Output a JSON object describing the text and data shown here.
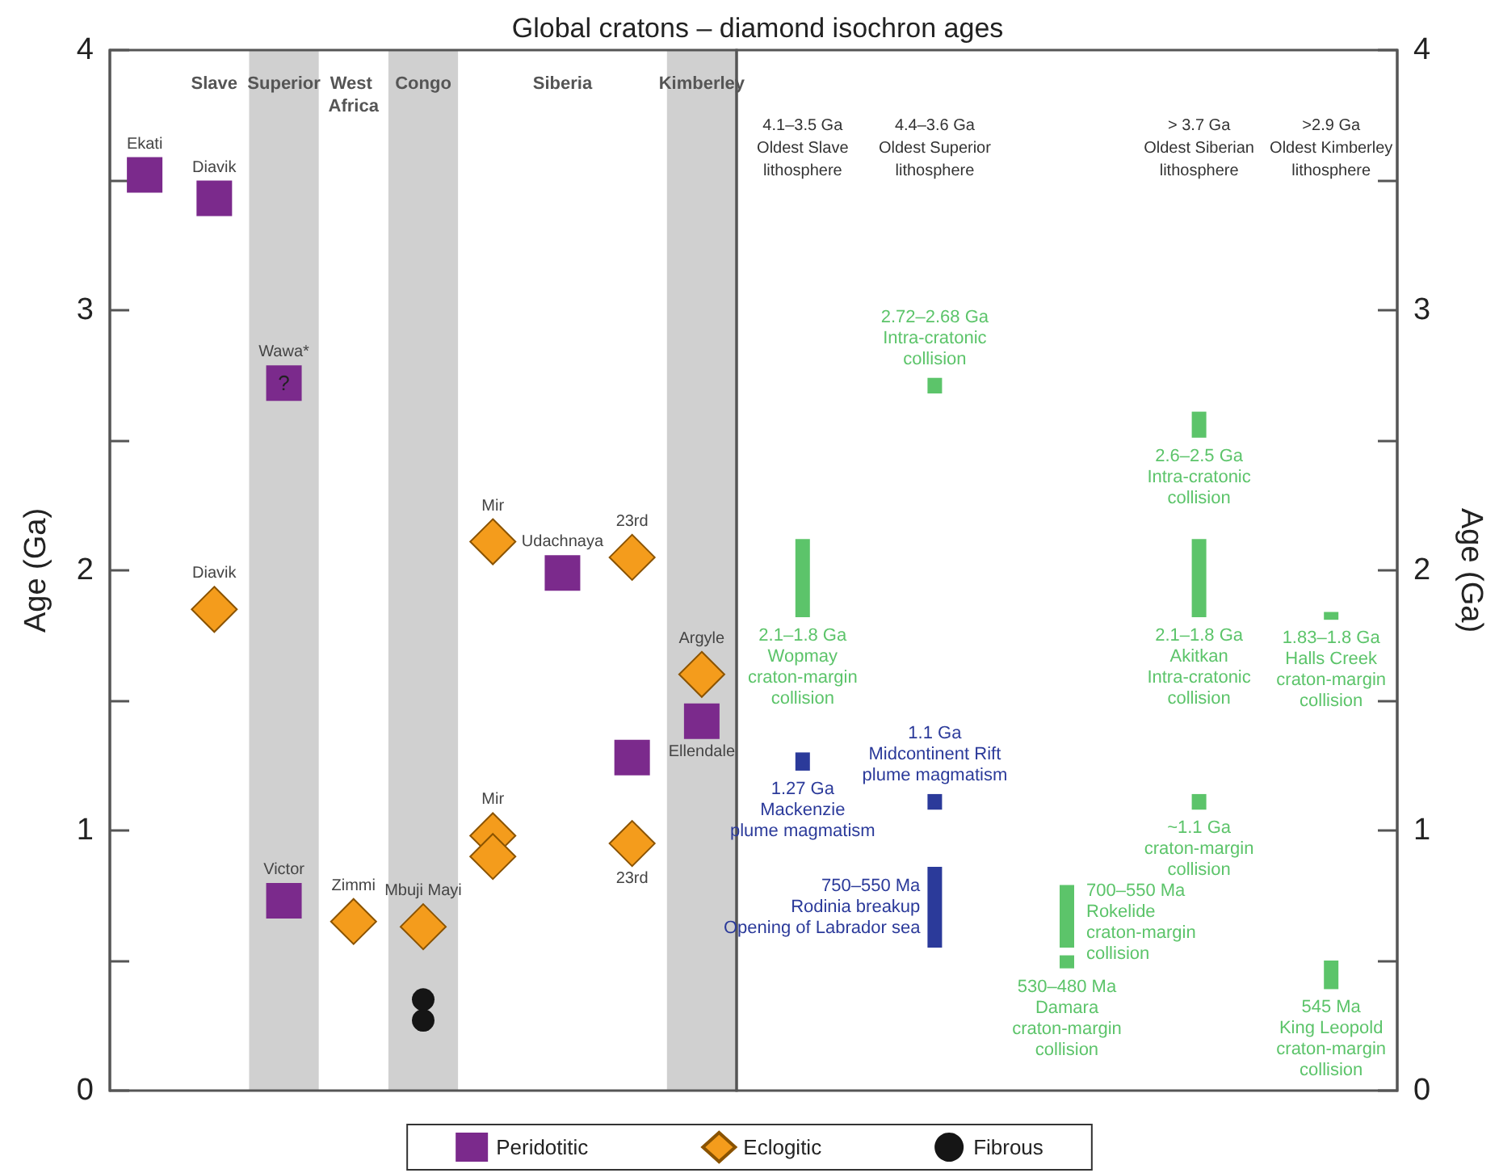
{
  "chart_data": [
    {
      "type": "scatter",
      "title": "Global cratons – diamond isochron ages",
      "ylabel": "Age (Ga)",
      "legend": "bottom",
      "categories": [
        null,
        "Slave",
        "Superior",
        "West Africa",
        "Congo",
        null,
        "Siberia",
        null,
        "Kimberley"
      ],
      "ylim": [
        0,
        4
      ],
      "yticks": [
        0,
        {
          "value": 0.5,
          "label": null
        },
        1,
        {
          "value": 1.5,
          "label": null
        },
        2,
        {
          "value": 2.5,
          "label": null
        },
        3,
        {
          "value": 3.5,
          "label": null
        },
        4
      ],
      "bands": [
        {
          "axis": "x",
          "from": "Superior",
          "to": "Superior",
          "color": "#d0d0d0"
        },
        {
          "axis": "x",
          "from": "Congo",
          "to": "Congo",
          "color": "#d0d0d0"
        },
        {
          "axis": "x",
          "from": "Kimberley",
          "to": "Kimberley",
          "color": "#d0d0d0"
        }
      ],
      "annotations": [
        {
          "text": "Ekati",
          "y": 3.52
        },
        {
          "text": "Diavik",
          "x": "Slave",
          "y": 3.43
        },
        {
          "text": "Wawa*",
          "x": "Superior",
          "y": 2.72
        },
        {
          "text": "?",
          "x": "Superior",
          "y": 2.72
        },
        {
          "text": "Diavik",
          "x": "Slave",
          "y": 1.85
        },
        {
          "text": "Victor",
          "x": "Superior",
          "y": 0.73
        },
        {
          "text": "Zimmi",
          "x": "West Africa",
          "y": 0.65
        },
        {
          "text": "Mbuji Mayi",
          "x": "Congo",
          "y": 0.63
        },
        {
          "text": "Mir",
          "y": 2.11
        },
        {
          "text": "Mir",
          "y": 0.98
        },
        {
          "text": "Udachnaya",
          "x": "Siberia",
          "y": 1.99
        },
        {
          "text": "23rd",
          "y": 2.05
        },
        {
          "text": "23rd",
          "y": 0.95
        },
        {
          "text": "Argyle",
          "x": "Kimberley",
          "y": 1.6
        },
        {
          "text": "Ellendale",
          "x": "Kimberley",
          "y": 1.42
        }
      ],
      "series": [
        {
          "name": "Peridotitic",
          "color": "#7b2a8c",
          "marker": "square",
          "values": [
            3.52,
            3.43,
            2.72,
            null,
            null,
            null,
            1.99,
            1.28,
            1.42
          ]
        },
        {
          "color": "#7b2a8c",
          "marker": "square",
          "values": [
            null,
            null,
            0.73,
            null,
            null,
            null,
            null,
            null,
            null
          ]
        },
        {
          "name": "Eclogitic",
          "color": "#f49c1c",
          "marker": "diamond",
          "values": [
            null,
            1.85,
            null,
            0.65,
            0.63,
            2.11,
            null,
            2.05,
            1.6
          ]
        },
        {
          "color": "#f49c1c",
          "marker": "diamond",
          "values": [
            null,
            null,
            null,
            null,
            null,
            0.98,
            null,
            0.95,
            null
          ]
        },
        {
          "color": "#f49c1c",
          "marker": "diamond",
          "values": [
            null,
            null,
            null,
            null,
            null,
            0.9,
            null,
            null,
            null
          ]
        },
        {
          "name": "Fibrous",
          "color": "#151515",
          "marker": "circle",
          "values": [
            null,
            null,
            null,
            null,
            0.35,
            null,
            null,
            null,
            null
          ]
        },
        {
          "color": "#151515",
          "marker": "circle",
          "values": [
            null,
            null,
            null,
            null,
            0.27,
            null,
            null,
            null,
            null
          ]
        }
      ]
    },
    {
      "type": "bar",
      "ylabel": "Age (Ga)",
      "categories": [
        "4.1–3.5 Ga\nOldest Slave\nlithosphere",
        "4.4–3.6 Ga\nOldest Superior\nlithosphere",
        null,
        "> 3.7 Ga\nOldest Siberian\nlithosphere",
        ">2.9 Ga\nOldest Kimberley\nlithosphere"
      ],
      "ylim": [
        0,
        4
      ],
      "yticks": [
        0,
        {
          "value": 0.5,
          "label": null
        },
        1,
        {
          "value": 1.5,
          "label": null
        },
        2,
        {
          "value": 2.5,
          "label": null
        },
        3,
        {
          "value": 3.5,
          "label": null
        },
        4
      ],
      "annotations": [
        {
          "text": "2.1–1.8 Ga\nWopmay\ncraton-margin\ncollision",
          "x": "4.1–3.5 Ga\nOldest Slave\nlithosphere",
          "y": 1.82
        },
        {
          "text": "1.27 Ga\nMackenzie\nplume magmatism",
          "x": "4.1–3.5 Ga\nOldest Slave\nlithosphere",
          "y": 1.23
        },
        {
          "text": "2.72–2.68 Ga\nIntra-cratonic\ncollision",
          "x": "4.4–3.6 Ga\nOldest Superior\nlithosphere",
          "y": 2.68
        },
        {
          "text": "1.1 Ga\nMidcontinent Rift\nplume magmatism",
          "x": "4.4–3.6 Ga\nOldest Superior\nlithosphere",
          "y": 1.08
        },
        {
          "text": "750–550 Ma\nRodinia breakup\nOpening of Labrador sea",
          "x": "4.4–3.6 Ga\nOldest Superior\nlithosphere",
          "y": 0.55
        },
        "700–550 Ma\nRokelide\ncraton-margin\ncollision",
        {
          "text": "530–480 Ma\nDamara\ncraton-margin\ncollision",
          "y": 0.47
        },
        {
          "text": "2.6–2.5 Ga\nIntra-cratonic\ncollision",
          "x": "> 3.7 Ga\nOldest Siberian\nlithosphere",
          "y": 2.51
        },
        {
          "text": "2.1–1.8 Ga\nAkitkan\nIntra-cratonic\ncollision",
          "x": "> 3.7 Ga\nOldest Siberian\nlithosphere",
          "y": 1.82
        },
        {
          "text": "~1.1 Ga\ncraton-margin\ncollision",
          "x": "> 3.7 Ga\nOldest Siberian\nlithosphere",
          "y": 1.08
        },
        {
          "text": "1.83–1.8 Ga\nHalls Creek\ncraton-margin\ncollision",
          "x": ">2.9 Ga\nOldest Kimberley\nlithosphere",
          "y": 1.81
        },
        {
          "text": "545 Ma\nKing Leopold\ncraton-margin\ncollision",
          "x": ">2.9 Ga\nOldest Kimberley\nlithosphere",
          "y": 0.39
        }
      ],
      "series": [
        {
          "colors": [
            "#5cc46a",
            "#5cc46a",
            "#5cc46a",
            "#5cc46a",
            "#5cc46a"
          ],
          "values": [
            0.3,
            0.06,
            0.24,
            0.1,
            0.03
          ],
          "base": [
            1.82,
            2.68,
            0.55,
            2.51,
            1.81
          ]
        },
        {
          "colors": [
            "#2b3a9a",
            "#2b3a9a",
            "#5cc46a",
            "#5cc46a",
            "#5cc46a"
          ],
          "values": [
            0.07,
            0.06,
            0.05,
            0.3,
            0.11
          ],
          "base": [
            1.23,
            1.08,
            0.47,
            1.82,
            0.39
          ]
        },
        {
          "colors": [
            null,
            "#2b3a9a",
            null,
            "#5cc46a",
            null
          ],
          "values": [
            null,
            0.31,
            null,
            0.06,
            null
          ],
          "base": [
            null,
            0.55,
            null,
            1.08,
            null
          ]
        }
      ]
    }
  ]
}
